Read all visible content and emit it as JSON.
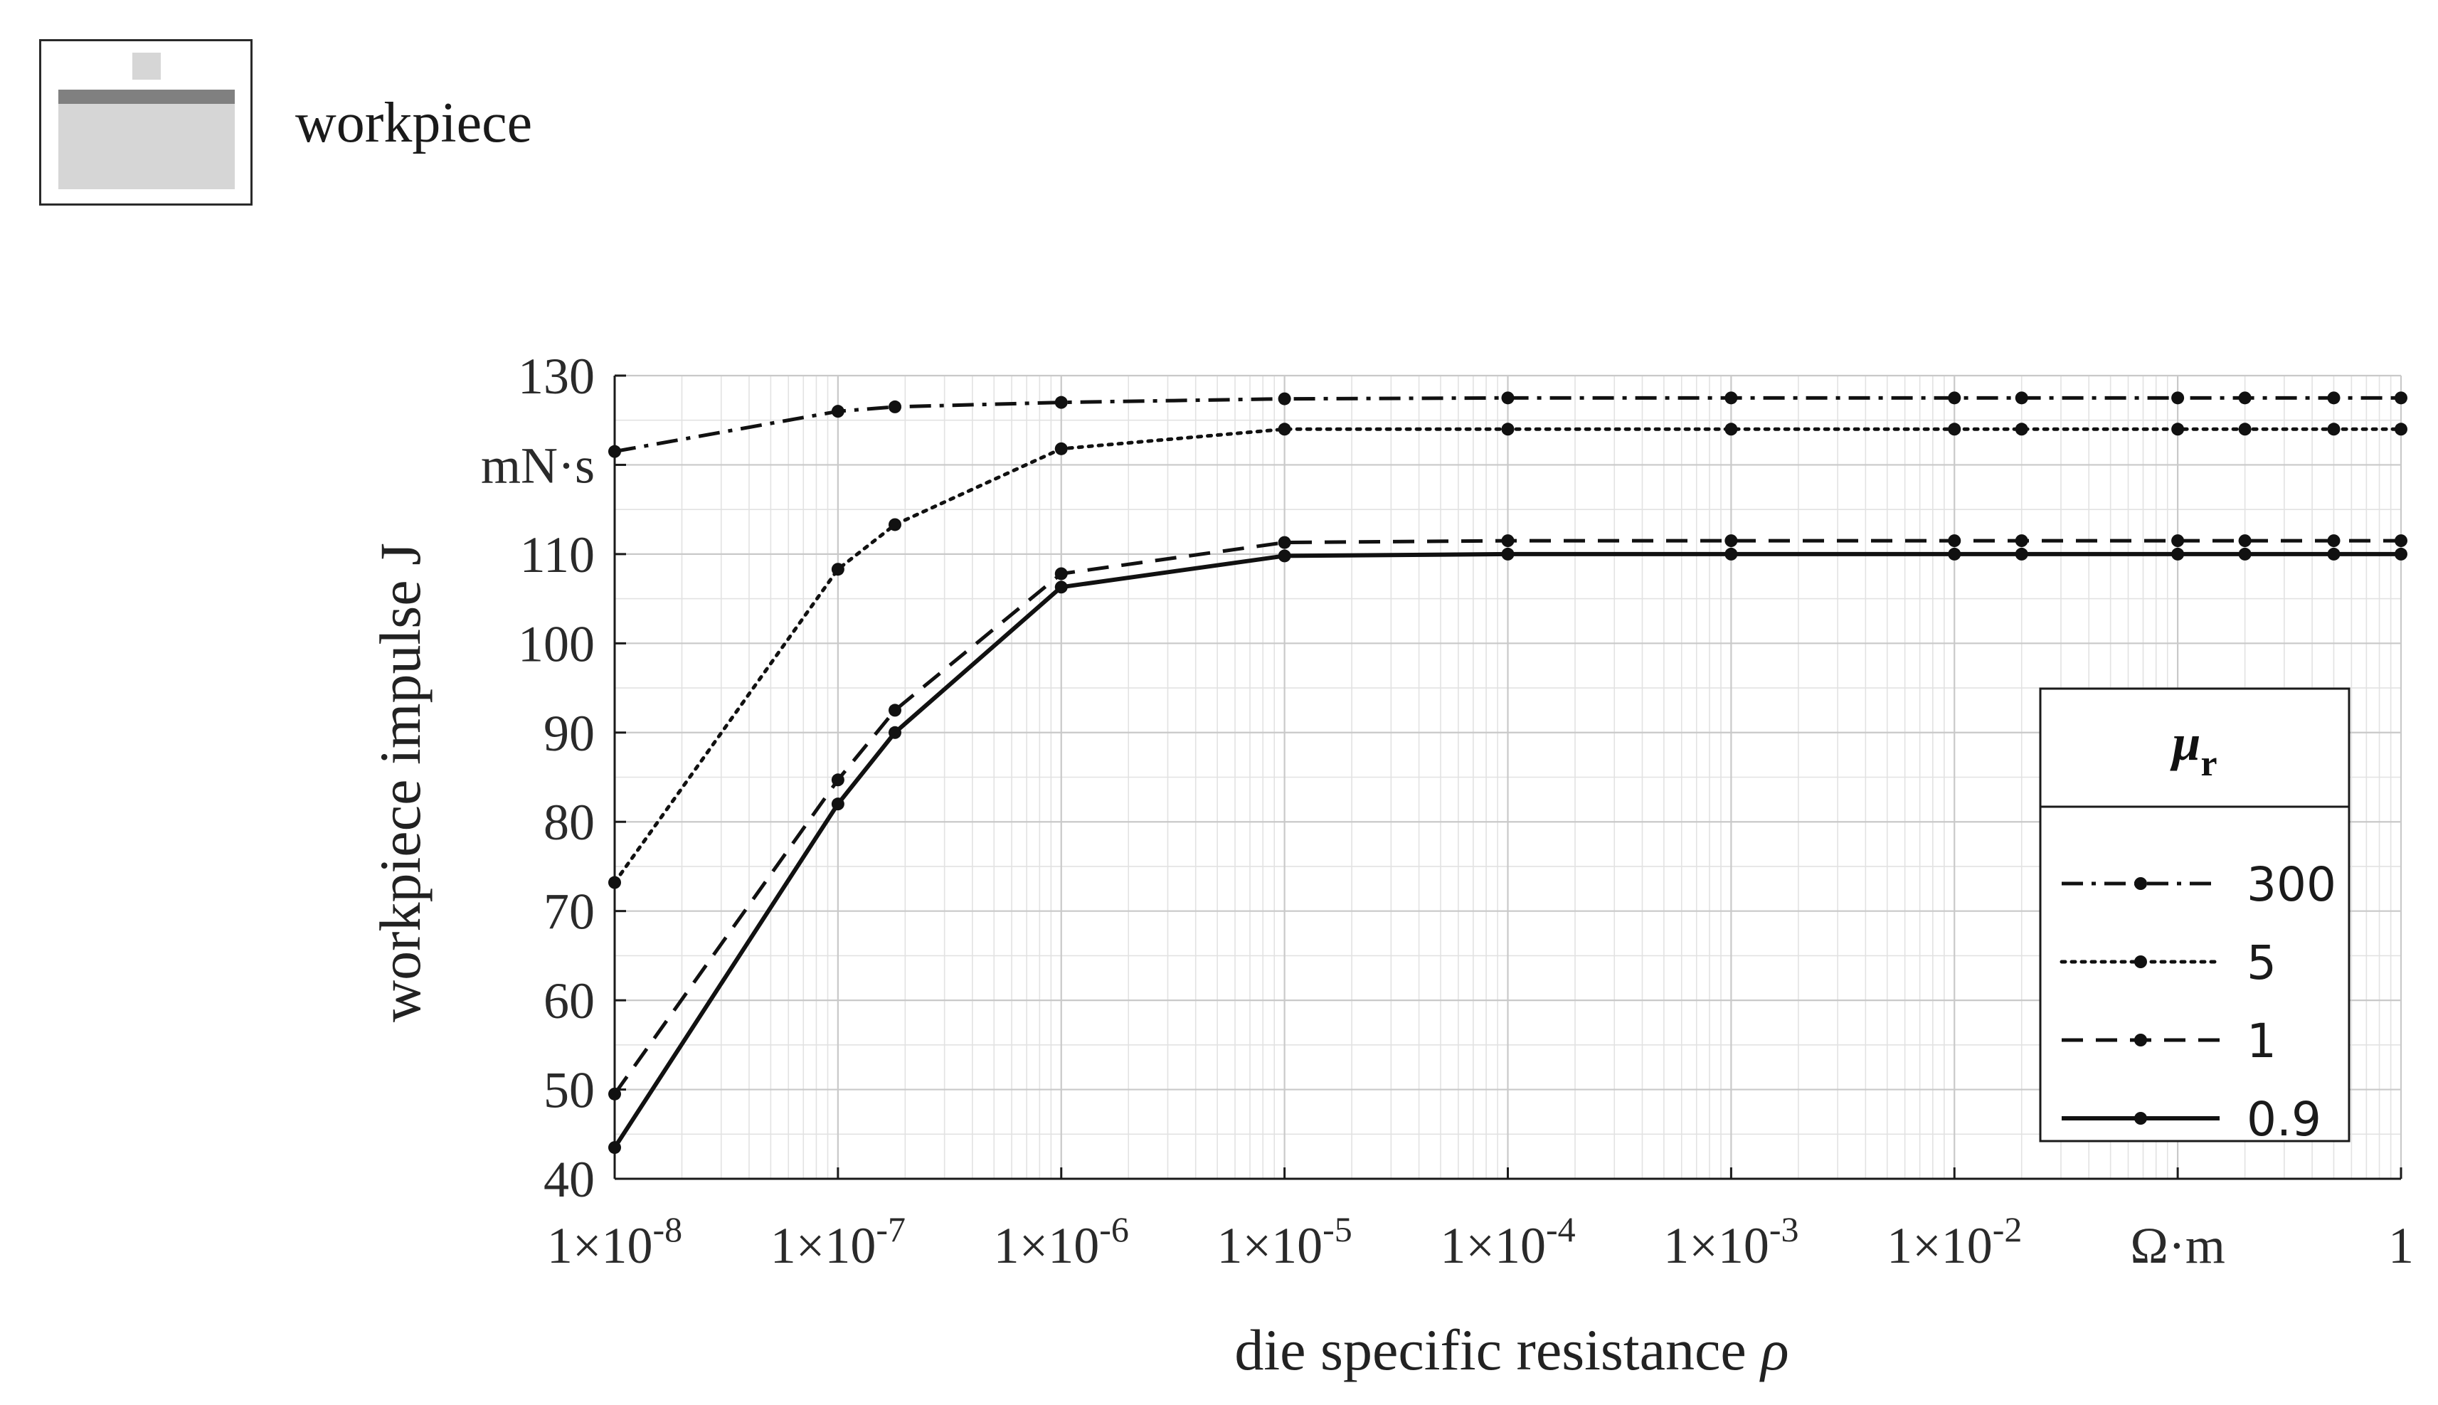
{
  "legend_box": {
    "label": "workpiece"
  },
  "chart_data": {
    "type": "line",
    "x_scale": "log",
    "xlim": [
      1e-08,
      1
    ],
    "ylim": [
      40,
      130
    ],
    "grid": true,
    "xlabel": "die specific resistance ρ",
    "ylabel": "workpiece impulse J",
    "y_unit": "mN·s",
    "x_unit": "Ω·m",
    "x_ticks": [
      {
        "value": 1e-08,
        "label": "1×10",
        "exp": "-8"
      },
      {
        "value": 1e-07,
        "label": "1×10",
        "exp": "-7"
      },
      {
        "value": 1e-06,
        "label": "1×10",
        "exp": "-6"
      },
      {
        "value": 1e-05,
        "label": "1×10",
        "exp": "-5"
      },
      {
        "value": 0.0001,
        "label": "1×10",
        "exp": "-4"
      },
      {
        "value": 0.001,
        "label": "1×10",
        "exp": "-3"
      },
      {
        "value": 0.01,
        "label": "1×10",
        "exp": "-2"
      },
      {
        "value": 0.1,
        "label": "Ω·m",
        "exp": ""
      },
      {
        "value": 1,
        "label": "1",
        "exp": ""
      }
    ],
    "y_ticks": [
      {
        "value": 40,
        "label": "40"
      },
      {
        "value": 50,
        "label": "50"
      },
      {
        "value": 60,
        "label": "60"
      },
      {
        "value": 70,
        "label": "70"
      },
      {
        "value": 80,
        "label": "80"
      },
      {
        "value": 90,
        "label": "90"
      },
      {
        "value": 100,
        "label": "100"
      },
      {
        "value": 110,
        "label": "110"
      },
      {
        "value": 120,
        "label": "mN·s"
      },
      {
        "value": 130,
        "label": "130"
      }
    ],
    "legend": {
      "title": "μ",
      "title_sub": "r",
      "position": "lower-right"
    },
    "x": [
      1e-08,
      1e-07,
      1.8e-07,
      1e-06,
      1e-05,
      0.0001,
      0.001,
      0.01,
      0.02,
      0.1,
      0.2,
      0.5,
      1
    ],
    "series": [
      {
        "name": "300",
        "style": "dashdot",
        "values": [
          121.5,
          126.0,
          126.5,
          127.0,
          127.4,
          127.5,
          127.5,
          127.5,
          127.5,
          127.5,
          127.5,
          127.5,
          127.5
        ]
      },
      {
        "name": "5",
        "style": "dotted",
        "values": [
          73.2,
          108.3,
          113.3,
          121.8,
          124.0,
          124.0,
          124.0,
          124.0,
          124.0,
          124.0,
          124.0,
          124.0,
          124.0
        ]
      },
      {
        "name": "1",
        "style": "dashed",
        "values": [
          49.5,
          84.7,
          92.5,
          107.8,
          111.3,
          111.5,
          111.5,
          111.5,
          111.5,
          111.5,
          111.5,
          111.5,
          111.5
        ]
      },
      {
        "name": "0.9",
        "style": "solid",
        "values": [
          43.5,
          82.0,
          90.0,
          106.3,
          109.8,
          110.0,
          110.0,
          110.0,
          110.0,
          110.0,
          110.0,
          110.0,
          110.0
        ]
      }
    ]
  }
}
